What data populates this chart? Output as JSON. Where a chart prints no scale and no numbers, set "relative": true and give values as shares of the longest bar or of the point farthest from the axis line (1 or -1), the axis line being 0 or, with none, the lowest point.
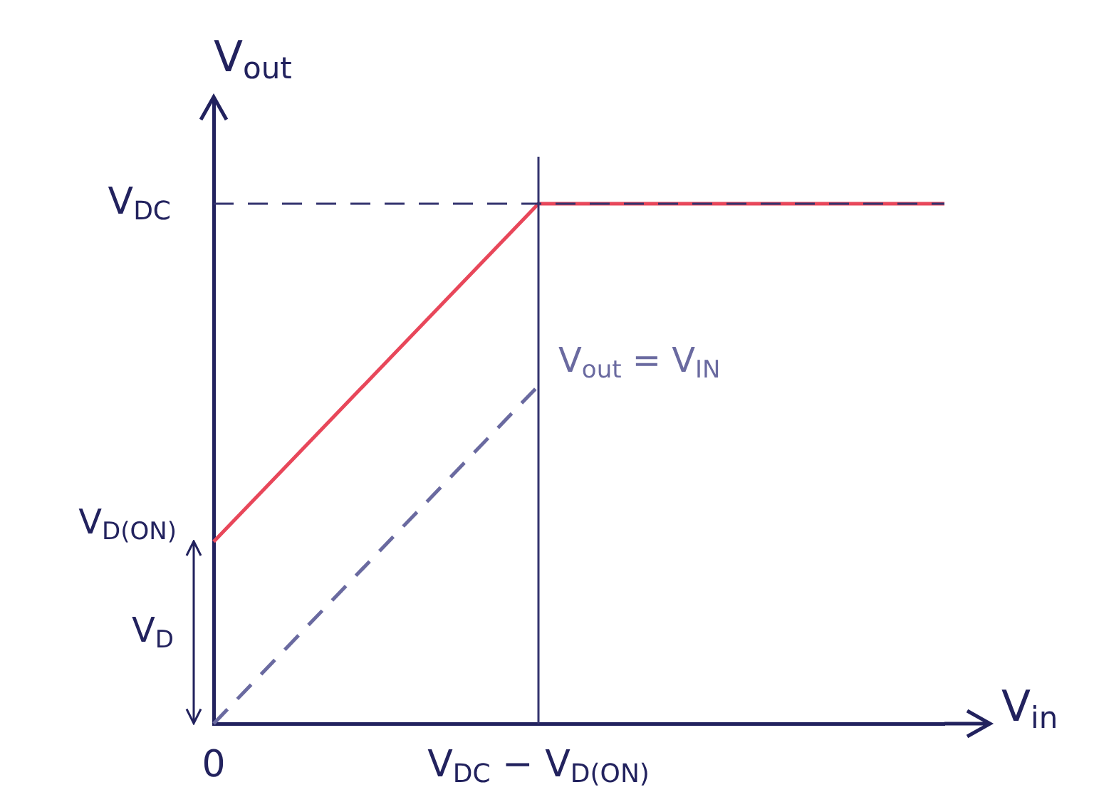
{
  "chart_data": {
    "type": "line",
    "xlabel": "V$_{in}$",
    "ylabel": "V$_{out}$",
    "relative": true,
    "categories": [
      "0",
      null,
      null,
      null,
      "V$_{DC}$ − V$_{D(ON)}$",
      null,
      null,
      null,
      null,
      null
    ],
    "series": [
      {
        "color": "#e8475a",
        "values": [
          0.35,
          null,
          null,
          null,
          1,
          null,
          null,
          null,
          null,
          1
        ]
      },
      {
        "name": "V$_{out}$ = V$_{IN}$",
        "color": "#6a6aa0",
        "values": [
          0,
          null,
          null,
          null,
          0.65,
          null,
          null,
          null,
          null,
          null
        ],
        "line_style": "dashed"
      }
    ],
    "ref_lines": [
      {
        "axis": "y",
        "value": 1,
        "color": "#33336e",
        "line_style": "dashed",
        "label": "V$_{DC}$"
      },
      {
        "axis": "x",
        "value": "V$_{DC}$ − V$_{D(ON)}$",
        "color": "#33336e"
      }
    ],
    "annotations": [
      "V$_{D}$",
      {
        "text": "V$_{D(ON)}$",
        "x": "0",
        "y": 0.35
      }
    ],
    "grid": false,
    "legend": false,
    "marker": "none"
  }
}
